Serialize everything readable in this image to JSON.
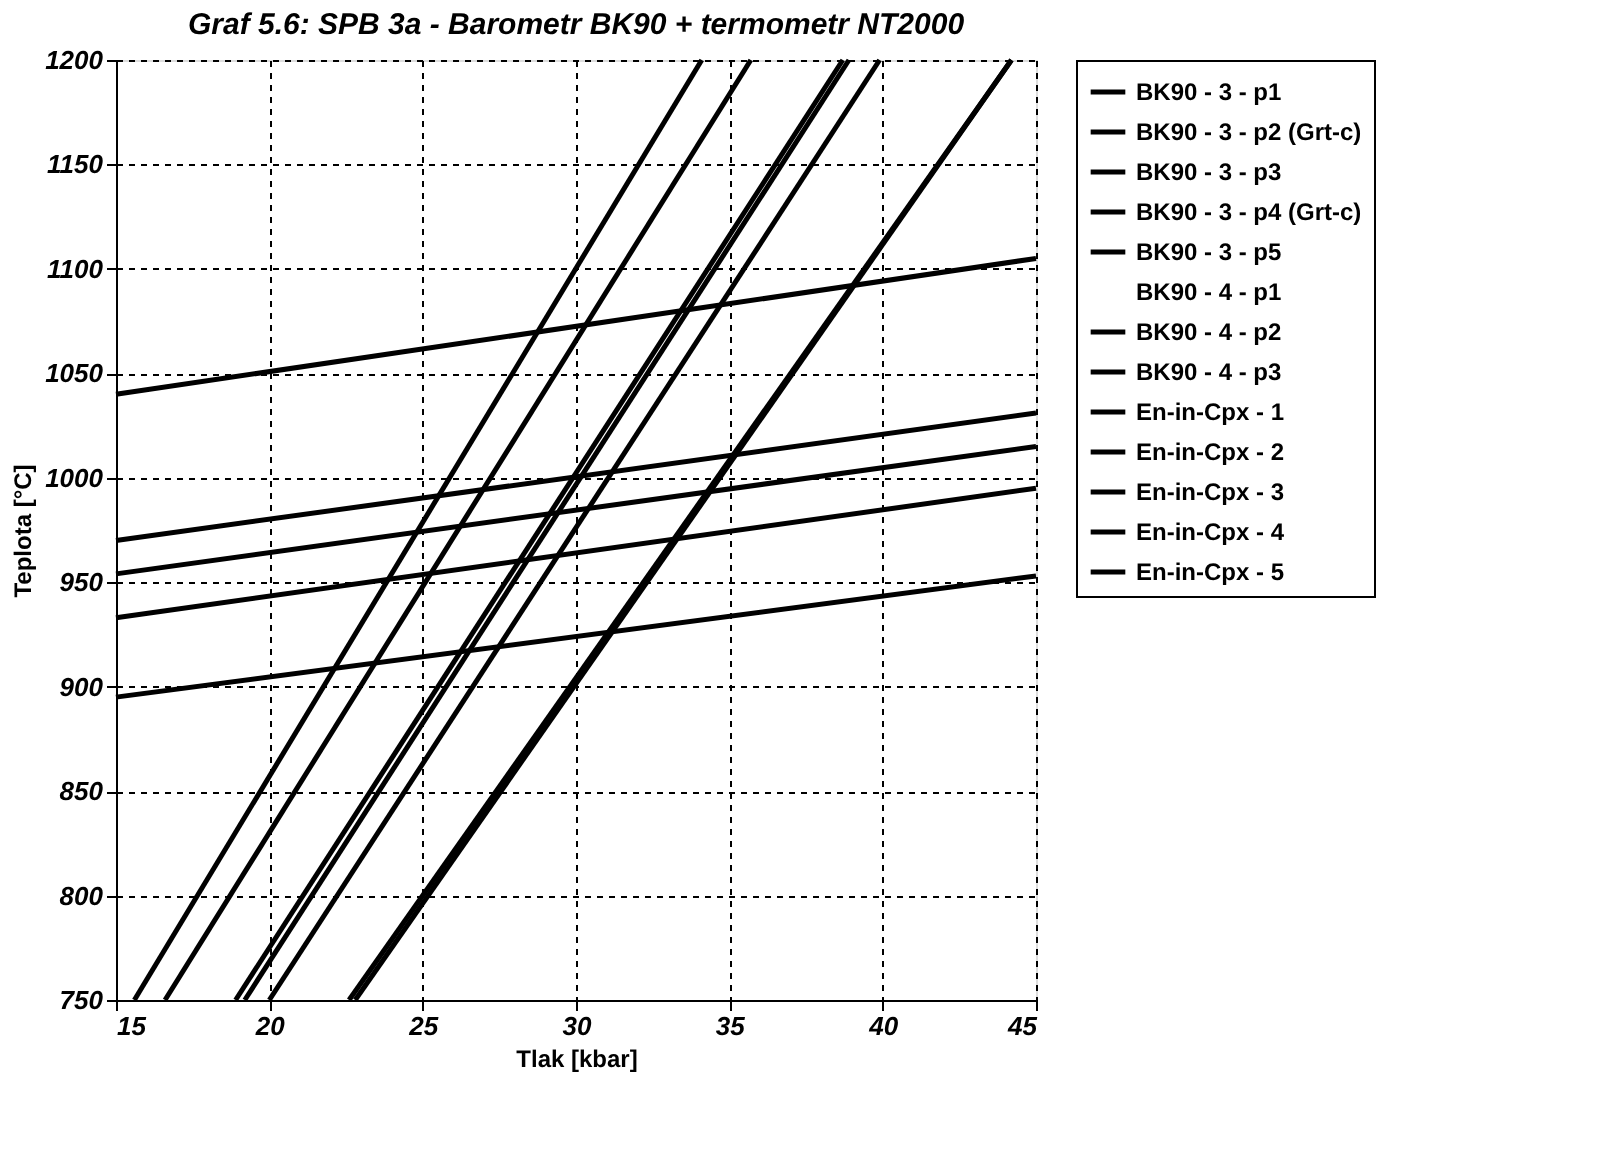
{
  "chart_data": {
    "type": "line",
    "title": "Graf 5.6: SPB 3a - Barometr BK90 + termometr NT2000",
    "xlabel": "Tlak [kbar]",
    "ylabel": "Teplota [°C]",
    "xlim": [
      15,
      45
    ],
    "xticks": [
      15,
      20,
      25,
      30,
      35,
      40,
      45
    ],
    "ylim": [
      750,
      1200
    ],
    "yticks": [
      750,
      800,
      850,
      900,
      950,
      1000,
      1050,
      1100,
      1150,
      1200
    ],
    "grid": true,
    "legend": "right",
    "marker": "none",
    "line_style": "solid",
    "series": [
      {
        "name": "BK90 - 3 - p1",
        "color": "#000000",
        "x": [
          15.6,
          34.1
        ],
        "values": [
          750,
          1200
        ]
      },
      {
        "name": "BK90 - 3 - p2 (Grt-c)",
        "color": "#000000",
        "x": [
          16.6,
          35.7
        ],
        "values": [
          750,
          1200
        ]
      },
      {
        "name": "BK90 - 3 - p3",
        "color": "#000000",
        "x": [
          18.9,
          38.7
        ],
        "values": [
          750,
          1200
        ]
      },
      {
        "name": "BK90 - 3 - p4 (Grt-c)",
        "color": "#000000",
        "x": [
          20.0,
          39.9
        ],
        "values": [
          750,
          1200
        ]
      },
      {
        "name": "BK90 - 3 - p5",
        "color": "#000000",
        "x": [
          22.6,
          44.2
        ],
        "values": [
          750,
          1200
        ]
      },
      {
        "name": "BK90 - 4 - p1"
      },
      {
        "name": "BK90 - 4 - p2",
        "color": "#000000",
        "x": [
          19.2,
          38.9
        ],
        "values": [
          750,
          1200
        ]
      },
      {
        "name": "BK90 - 4 - p3",
        "color": "#000000",
        "x": [
          22.8,
          44.2
        ],
        "values": [
          750,
          1200
        ]
      },
      {
        "name": "En-in-Cpx - 1",
        "color": "#000000",
        "x": [
          15,
          45
        ],
        "values": [
          1040,
          1105
        ]
      },
      {
        "name": "En-in-Cpx - 2",
        "color": "#000000",
        "x": [
          15,
          45
        ],
        "values": [
          970,
          1031
        ]
      },
      {
        "name": "En-in-Cpx - 3",
        "color": "#000000",
        "x": [
          15,
          45
        ],
        "values": [
          954,
          1015
        ]
      },
      {
        "name": "En-in-Cpx - 4",
        "color": "#000000",
        "x": [
          15,
          45
        ],
        "values": [
          933,
          995
        ]
      },
      {
        "name": "En-in-Cpx - 5",
        "color": "#000000",
        "x": [
          15,
          45
        ],
        "values": [
          895,
          953
        ]
      }
    ]
  }
}
